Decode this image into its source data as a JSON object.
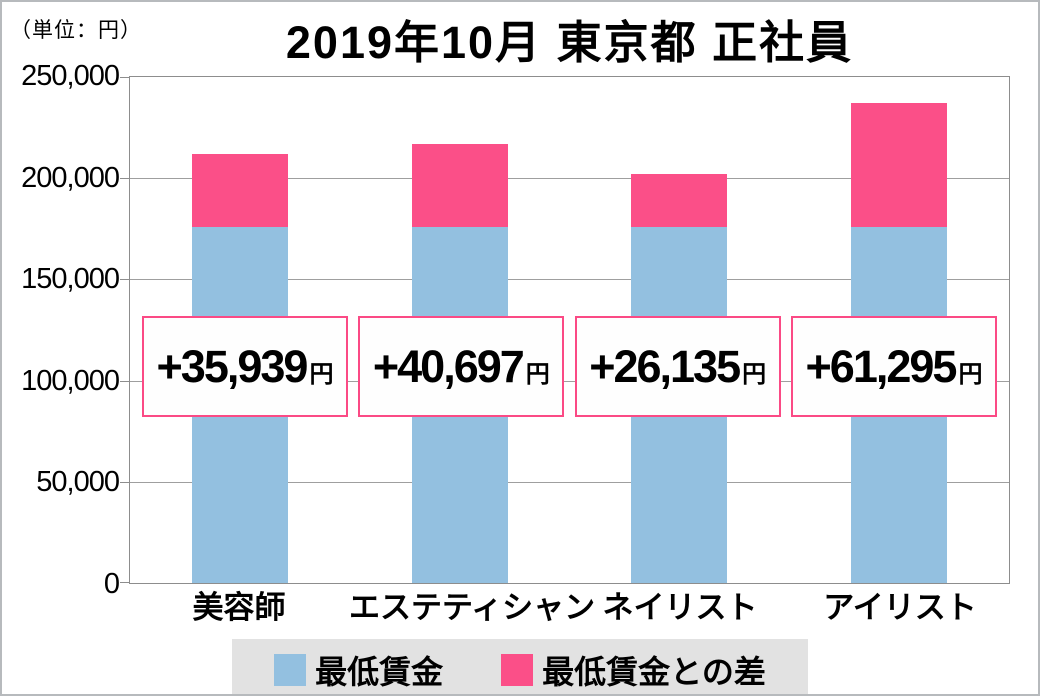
{
  "header": {
    "unit_label": "（単位：円）"
  },
  "chart_data": {
    "type": "bar",
    "stacked": true,
    "title": "2019年10月 東京都 正社員",
    "categories": [
      "美容師",
      "エステティシャン",
      "ネイリスト",
      "アイリスト"
    ],
    "series": [
      {
        "name": "最低賃金",
        "color": "#93c0e0",
        "values": [
          176000,
          176000,
          176000,
          176000
        ]
      },
      {
        "name": "最低賃金との差",
        "color": "#fb4f88",
        "values": [
          35939,
          40697,
          26135,
          61295
        ]
      }
    ],
    "totals": [
      211939,
      216697,
      202135,
      237295
    ],
    "bar_labels": [
      {
        "amount": "+35,939",
        "unit": "円"
      },
      {
        "amount": "+40,697",
        "unit": "円"
      },
      {
        "amount": "+26,135",
        "unit": "円"
      },
      {
        "amount": "+61,295",
        "unit": "円"
      }
    ],
    "xlabel": "",
    "ylabel": "",
    "ylim": [
      0,
      250000
    ],
    "ytick_interval": 50000,
    "ytick_labels": [
      "250,000",
      "200,000",
      "150,000",
      "100,000",
      "50,000",
      "0"
    ],
    "grid": true,
    "legend": {
      "position": "bottom",
      "background": "#e2e2e2",
      "entries": [
        {
          "label": "最低賃金",
          "color": "#93c0e0"
        },
        {
          "label": "最低賃金との差",
          "color": "#fb4f88"
        }
      ]
    }
  },
  "colors": {
    "bar_blue": "#93c0e0",
    "bar_pink": "#fb4f88",
    "box_border_pink": "#fb4a85",
    "legend_background": "#e2e2e2",
    "gridline": "#9f9f9f",
    "plot_border": "#8d8d8d"
  }
}
